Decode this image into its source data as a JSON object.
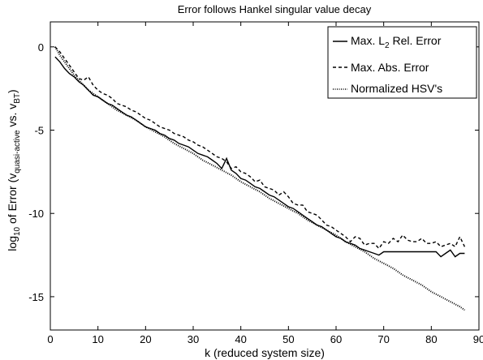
{
  "chart_data": {
    "type": "line",
    "title": "Error follows Hankel singular value decay",
    "xlabel": "k (reduced system size)",
    "ylabel": {
      "prefix": "log",
      "prefix_sub": "10",
      "middle": " of Error (v",
      "sub1": "quasi-active",
      "middle2": " vs. v",
      "sub2": "BT",
      "suffix": ")"
    },
    "xlim": [
      0,
      90
    ],
    "ylim": [
      -17,
      1.5
    ],
    "xticks": [
      0,
      10,
      20,
      30,
      40,
      50,
      60,
      70,
      80,
      90
    ],
    "yticks": [
      0,
      -5,
      -10,
      -15
    ],
    "xtick_labels": [
      "0",
      "10",
      "20",
      "30",
      "40",
      "50",
      "60",
      "70",
      "80",
      "90"
    ],
    "ytick_labels": [
      "0",
      "-5",
      "-10",
      "-15"
    ],
    "grid": false,
    "legend_position": "top-right",
    "legend": {
      "items": [
        {
          "prefix": "Max. L",
          "sub": "2",
          "suffix": " Rel. Error",
          "style": "solid"
        },
        {
          "prefix": "Max. Abs. Error",
          "sub": "",
          "suffix": "",
          "style": "dashed"
        },
        {
          "prefix": "Normalized HSV's",
          "sub": "",
          "suffix": "",
          "style": "dotted"
        }
      ]
    },
    "series": [
      {
        "style": "solid",
        "x": [
          1,
          2,
          3,
          4,
          5,
          6,
          7,
          8,
          9,
          10,
          11,
          12,
          13,
          14,
          15,
          16,
          17,
          18,
          19,
          20,
          21,
          22,
          23,
          24,
          25,
          26,
          27,
          28,
          29,
          30,
          31,
          32,
          33,
          34,
          35,
          36,
          37,
          38,
          39,
          40,
          41,
          42,
          43,
          44,
          45,
          46,
          47,
          48,
          49,
          50,
          51,
          52,
          53,
          54,
          55,
          56,
          57,
          58,
          59,
          60,
          61,
          62,
          63,
          64,
          65,
          66,
          67,
          68,
          69,
          70,
          72,
          74,
          76,
          78,
          80,
          81,
          82,
          83,
          84,
          85,
          86,
          87
        ],
        "y": [
          -0.6,
          -0.9,
          -1.3,
          -1.6,
          -1.8,
          -2.1,
          -2.3,
          -2.6,
          -2.9,
          -3.0,
          -3.2,
          -3.4,
          -3.5,
          -3.7,
          -3.9,
          -4.1,
          -4.2,
          -4.4,
          -4.6,
          -4.8,
          -4.9,
          -5.0,
          -5.2,
          -5.3,
          -5.5,
          -5.6,
          -5.8,
          -5.9,
          -6.0,
          -6.2,
          -6.4,
          -6.5,
          -6.6,
          -6.8,
          -7.0,
          -7.3,
          -6.7,
          -7.4,
          -7.6,
          -7.9,
          -8.0,
          -8.2,
          -8.4,
          -8.5,
          -8.7,
          -8.9,
          -9.0,
          -9.2,
          -9.4,
          -9.6,
          -9.7,
          -9.9,
          -10.1,
          -10.3,
          -10.5,
          -10.7,
          -10.8,
          -11.0,
          -11.2,
          -11.4,
          -11.5,
          -11.7,
          -11.8,
          -11.9,
          -12.1,
          -12.2,
          -12.3,
          -12.4,
          -12.5,
          -12.3,
          -12.3,
          -12.3,
          -12.3,
          -12.3,
          -12.3,
          -12.3,
          -12.6,
          -12.4,
          -12.2,
          -12.6,
          -12.4,
          -12.4
        ]
      },
      {
        "style": "dashed",
        "x": [
          1,
          2,
          3,
          4,
          5,
          6,
          7,
          8,
          9,
          10,
          11,
          12,
          13,
          14,
          15,
          16,
          17,
          18,
          19,
          20,
          21,
          22,
          23,
          24,
          25,
          26,
          27,
          28,
          29,
          30,
          31,
          32,
          33,
          34,
          35,
          36,
          37,
          38,
          39,
          40,
          41,
          42,
          43,
          44,
          45,
          46,
          47,
          48,
          49,
          50,
          51,
          52,
          53,
          54,
          55,
          56,
          57,
          58,
          59,
          60,
          61,
          62,
          63,
          64,
          65,
          66,
          67,
          68,
          69,
          70,
          71,
          72,
          73,
          74,
          75,
          76,
          77,
          78,
          79,
          80,
          81,
          82,
          83,
          84,
          85,
          86,
          87
        ],
        "y": [
          0.0,
          -0.3,
          -0.7,
          -1.1,
          -1.5,
          -1.9,
          -2.0,
          -1.8,
          -2.3,
          -2.6,
          -2.8,
          -2.9,
          -3.1,
          -3.4,
          -3.5,
          -3.6,
          -3.8,
          -3.9,
          -4.1,
          -4.3,
          -4.4,
          -4.6,
          -4.8,
          -4.9,
          -5.0,
          -5.2,
          -5.3,
          -5.4,
          -5.6,
          -5.7,
          -5.9,
          -6.0,
          -6.2,
          -6.4,
          -6.6,
          -6.7,
          -6.9,
          -7.3,
          -7.2,
          -7.5,
          -7.6,
          -7.8,
          -8.1,
          -8.0,
          -8.4,
          -8.5,
          -8.6,
          -8.9,
          -8.7,
          -9.0,
          -9.4,
          -9.5,
          -9.5,
          -9.9,
          -10.0,
          -10.1,
          -10.4,
          -10.7,
          -10.8,
          -11.0,
          -11.2,
          -11.4,
          -11.7,
          -11.4,
          -11.5,
          -11.9,
          -11.8,
          -11.8,
          -12.1,
          -11.7,
          -11.8,
          -11.5,
          -11.7,
          -11.3,
          -11.6,
          -11.7,
          -11.7,
          -11.5,
          -11.8,
          -11.8,
          -11.7,
          -12.0,
          -11.9,
          -11.8,
          -12.0,
          -11.4,
          -12.0
        ]
      },
      {
        "style": "dotted",
        "x": [
          1,
          2,
          3,
          4,
          5,
          6,
          7,
          8,
          9,
          10,
          12,
          14,
          16,
          18,
          20,
          22,
          24,
          26,
          28,
          30,
          32,
          34,
          36,
          38,
          40,
          42,
          44,
          46,
          48,
          50,
          52,
          54,
          56,
          58,
          60,
          62,
          64,
          66,
          68,
          70,
          72,
          74,
          76,
          78,
          80,
          82,
          84,
          86,
          87
        ],
        "y": [
          0.0,
          -0.5,
          -0.9,
          -1.3,
          -1.7,
          -2.0,
          -2.3,
          -2.6,
          -2.8,
          -3.0,
          -3.4,
          -3.8,
          -4.1,
          -4.4,
          -4.8,
          -5.1,
          -5.4,
          -5.8,
          -6.1,
          -6.4,
          -6.8,
          -7.1,
          -7.4,
          -7.7,
          -8.1,
          -8.4,
          -8.7,
          -9.1,
          -9.4,
          -9.7,
          -10.0,
          -10.4,
          -10.7,
          -11.0,
          -11.3,
          -11.7,
          -12.0,
          -12.3,
          -12.7,
          -13.0,
          -13.3,
          -13.7,
          -14.0,
          -14.3,
          -14.7,
          -15.0,
          -15.3,
          -15.6,
          -15.8
        ]
      }
    ]
  }
}
